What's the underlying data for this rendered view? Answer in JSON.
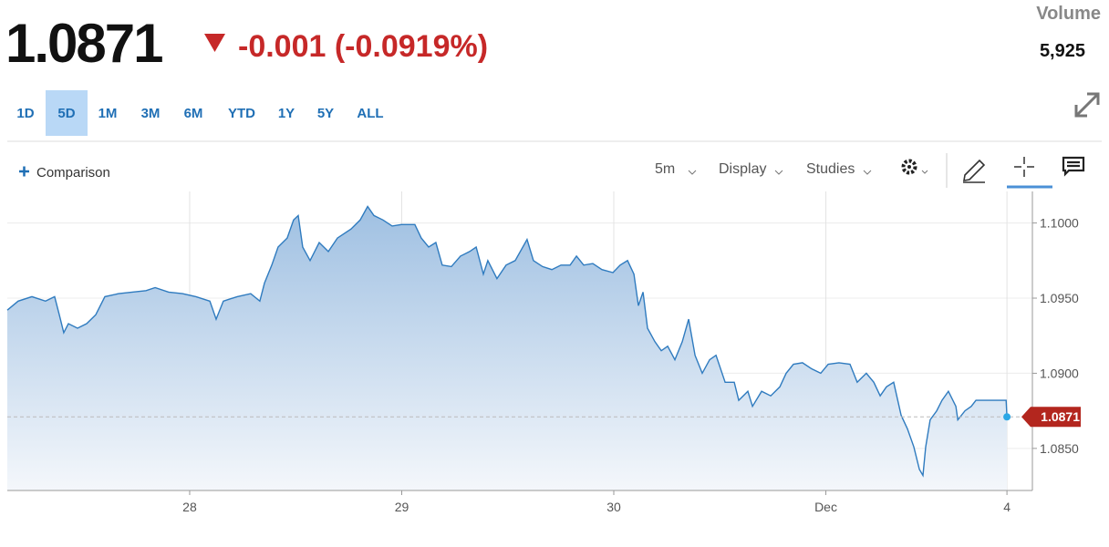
{
  "header": {
    "price": "1.0871",
    "change": "-0.001",
    "change_pct": "(-0.0919%)",
    "volume_label": "Volume",
    "volume": "5,925"
  },
  "ranges": {
    "options": [
      "1D",
      "5D",
      "1M",
      "3M",
      "6M",
      "YTD",
      "1Y",
      "5Y",
      "ALL"
    ],
    "selected": "5D"
  },
  "toolbar": {
    "comparison": "Comparison",
    "interval": "5m",
    "display": "Display",
    "studies": "Studies"
  },
  "chart_data": {
    "type": "area",
    "color": "#2f7bbf",
    "x": [
      0.14,
      0.191,
      0.256,
      0.32,
      0.363,
      0.385,
      0.406,
      0.428,
      0.471,
      0.514,
      0.557,
      0.6,
      0.665,
      0.729,
      0.794,
      0.837,
      0.901,
      0.966,
      1.03,
      1.095,
      1.125,
      1.159,
      1.224,
      1.288,
      1.331,
      1.353,
      1.387,
      1.417,
      1.46,
      1.49,
      1.512,
      1.533,
      1.568,
      1.611,
      1.654,
      1.697,
      1.761,
      1.804,
      1.839,
      1.869,
      1.912,
      1.955,
      1.998,
      2.062,
      2.092,
      2.127,
      2.161,
      2.191,
      2.234,
      2.277,
      2.32,
      2.351,
      2.385,
      2.406,
      2.449,
      2.492,
      2.535,
      2.591,
      2.621,
      2.664,
      2.708,
      2.751,
      2.794,
      2.824,
      2.858,
      2.901,
      2.944,
      2.996,
      3.03,
      3.065,
      3.095,
      3.116,
      3.138,
      3.159,
      3.194,
      3.224,
      3.254,
      3.288,
      3.323,
      3.353,
      3.383,
      3.417,
      3.452,
      3.482,
      3.525,
      3.568,
      3.589,
      3.632,
      3.654,
      3.697,
      3.74,
      3.783,
      3.813,
      3.847,
      3.89,
      3.933,
      3.976,
      4.011,
      4.062,
      4.114,
      4.148,
      4.191,
      4.226,
      4.256,
      4.286,
      4.32,
      4.355,
      4.385,
      4.415,
      4.441,
      4.458,
      4.471,
      4.492,
      4.523,
      4.548,
      4.578,
      4.613,
      4.622,
      4.656,
      4.686,
      4.708,
      4.751,
      4.794,
      4.85,
      4.854
    ],
    "values": [
      1.0942,
      1.0948,
      1.0951,
      1.0948,
      1.0951,
      1.0939,
      1.0927,
      1.0933,
      1.093,
      1.0933,
      1.0939,
      1.0951,
      1.0953,
      1.0954,
      1.0955,
      1.0957,
      1.0954,
      1.0953,
      1.0951,
      1.0948,
      1.0936,
      1.0948,
      1.0951,
      1.0953,
      1.0948,
      1.096,
      1.0972,
      1.0984,
      1.099,
      1.1002,
      1.1005,
      1.0984,
      1.0975,
      1.0987,
      1.0981,
      1.099,
      1.0996,
      1.1002,
      1.1011,
      1.1005,
      1.1002,
      1.0998,
      1.0999,
      1.0999,
      1.099,
      1.0984,
      1.0987,
      1.0972,
      1.0971,
      1.0978,
      1.0981,
      1.0984,
      1.0966,
      1.0975,
      1.0963,
      1.0972,
      1.0975,
      1.0989,
      1.0975,
      1.0971,
      1.0969,
      1.0972,
      1.0972,
      1.0978,
      1.0972,
      1.0973,
      1.0969,
      1.0967,
      1.0972,
      1.0975,
      1.0966,
      1.0945,
      1.0954,
      1.093,
      1.0921,
      1.0915,
      1.0918,
      1.0909,
      1.0921,
      1.0936,
      1.0912,
      1.09,
      1.0909,
      1.0912,
      1.0894,
      1.0894,
      1.0882,
      1.0888,
      1.0878,
      1.0888,
      1.0885,
      1.0891,
      1.09,
      1.0906,
      1.0907,
      1.0903,
      1.09,
      1.0906,
      1.0907,
      1.0906,
      1.0894,
      1.09,
      1.0894,
      1.0885,
      1.0891,
      1.0894,
      1.0872,
      1.0863,
      1.0851,
      1.0836,
      1.0832,
      1.0851,
      1.0869,
      1.0875,
      1.0882,
      1.0888,
      1.0878,
      1.0869,
      1.0875,
      1.0878,
      1.0882,
      1.0882,
      1.0882,
      1.0882,
      1.0871
    ],
    "xlim": [
      0.14,
      4.974
    ],
    "ylim": [
      1.0822,
      1.1021
    ],
    "xticks": [
      {
        "value": 1,
        "label": "28"
      },
      {
        "value": 2,
        "label": "29"
      },
      {
        "value": 3,
        "label": "30"
      },
      {
        "value": 4,
        "label": "Dec"
      },
      {
        "value": 4.854,
        "label": "4"
      }
    ],
    "yticks": [
      {
        "value": 1.085,
        "label": "1.0850"
      },
      {
        "value": 1.09,
        "label": "1.0900"
      },
      {
        "value": 1.095,
        "label": "1.0950"
      },
      {
        "value": 1.1,
        "label": "1.1000"
      }
    ],
    "grid": true
  }
}
